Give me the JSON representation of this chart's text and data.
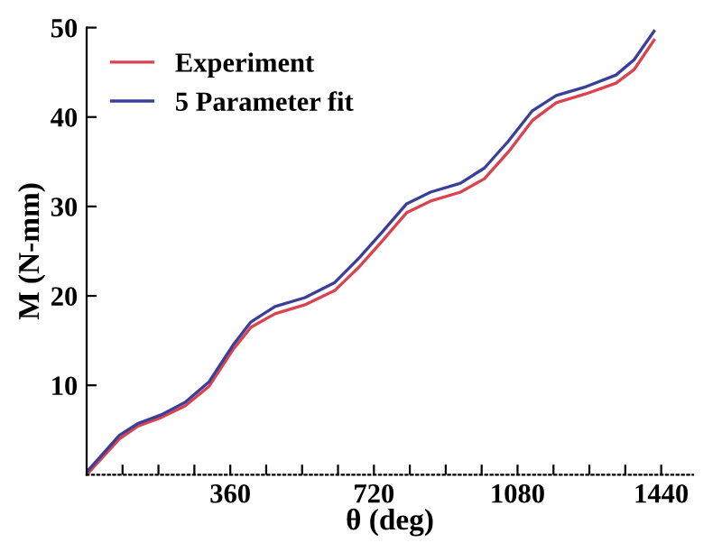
{
  "chart_data": {
    "type": "line",
    "xlabel": "θ (deg)",
    "ylabel": "M (N-mm)",
    "xlim": [
      0,
      1520
    ],
    "ylim": [
      0,
      50
    ],
    "xticks": [
      {
        "value": 90,
        "label": null
      },
      {
        "value": 180,
        "label": null
      },
      {
        "value": 270,
        "label": null
      },
      360,
      {
        "value": 450,
        "label": null
      },
      {
        "value": 540,
        "label": null
      },
      {
        "value": 630,
        "label": null
      },
      720,
      {
        "value": 810,
        "label": null
      },
      {
        "value": 900,
        "label": null
      },
      {
        "value": 990,
        "label": null
      },
      1080,
      {
        "value": 1170,
        "label": null
      },
      {
        "value": 1260,
        "label": null
      },
      {
        "value": 1350,
        "label": null
      },
      1440
    ],
    "yticks": [
      10,
      20,
      30,
      40,
      50
    ],
    "legend": "top left",
    "grid": false,
    "marker": "none",
    "line_style": "solid",
    "series": [
      {
        "name": "Experiment",
        "color": "#d9434f",
        "x": [
          0,
          82,
          127,
          187,
          247,
          307,
          367,
          412,
          472,
          547,
          622,
          682,
          742,
          802,
          862,
          937,
          997,
          1057,
          1117,
          1177,
          1252,
          1327,
          1372,
          1422
        ],
        "values": [
          0.0,
          4.0,
          5.4,
          6.4,
          7.7,
          9.9,
          14.0,
          16.5,
          18.0,
          19.0,
          20.6,
          23.2,
          26.2,
          29.3,
          30.6,
          31.6,
          33.1,
          36.1,
          39.6,
          41.6,
          42.6,
          43.8,
          45.3,
          48.6
        ]
      },
      {
        "name": "5 Parameter fit",
        "color": "#3a3f9a",
        "x": [
          0,
          82,
          127,
          187,
          247,
          307,
          367,
          412,
          472,
          547,
          622,
          682,
          742,
          802,
          862,
          937,
          997,
          1057,
          1117,
          1177,
          1252,
          1327,
          1372,
          1422
        ],
        "values": [
          0.3,
          4.4,
          5.7,
          6.7,
          8.1,
          10.4,
          14.5,
          17.1,
          18.8,
          19.8,
          21.5,
          24.2,
          27.2,
          30.3,
          31.6,
          32.6,
          34.3,
          37.3,
          40.7,
          42.4,
          43.4,
          44.7,
          46.4,
          49.6
        ]
      }
    ]
  }
}
